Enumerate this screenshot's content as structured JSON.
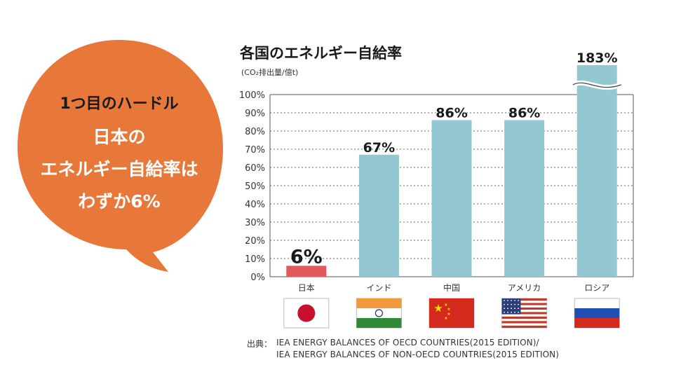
{
  "bubble": {
    "heading": "1つ目のハードル",
    "line1": "日本の",
    "line2": "エネルギー自給率は",
    "line3": "わずか6%",
    "color": "#e8783a"
  },
  "chart_data": {
    "type": "bar",
    "title": "各国のエネルギー自給率",
    "unit_note": "(CO₂排出量/億t)",
    "categories": [
      "日本",
      "インド",
      "中国",
      "アメリカ",
      "ロシア"
    ],
    "values": [
      6,
      67,
      86,
      86,
      183
    ],
    "value_labels": [
      "6%",
      "67%",
      "86%",
      "86%",
      "183%"
    ],
    "bar_colors": [
      "#e05a5a",
      "#93c8d2",
      "#93c8d2",
      "#93c8d2",
      "#93c8d2"
    ],
    "yticks": [
      "0%",
      "10%",
      "20%",
      "30%",
      "40%",
      "50%",
      "60%",
      "70%",
      "80%",
      "90%",
      "100%"
    ],
    "ylim": [
      0,
      100
    ],
    "broken_axis_value": 183,
    "grid": "dotted",
    "flags": [
      "japan-flag",
      "india-flag",
      "china-flag",
      "usa-flag",
      "russia-flag"
    ]
  },
  "source": {
    "label": "出典：",
    "line1": "IEA ENERGY BALANCES OF OECD COUNTRIES(2015 EDITION)/",
    "line2": "IEA ENERGY BALANCES OF NON-OECD COUNTRIES(2015 EDITION)"
  }
}
